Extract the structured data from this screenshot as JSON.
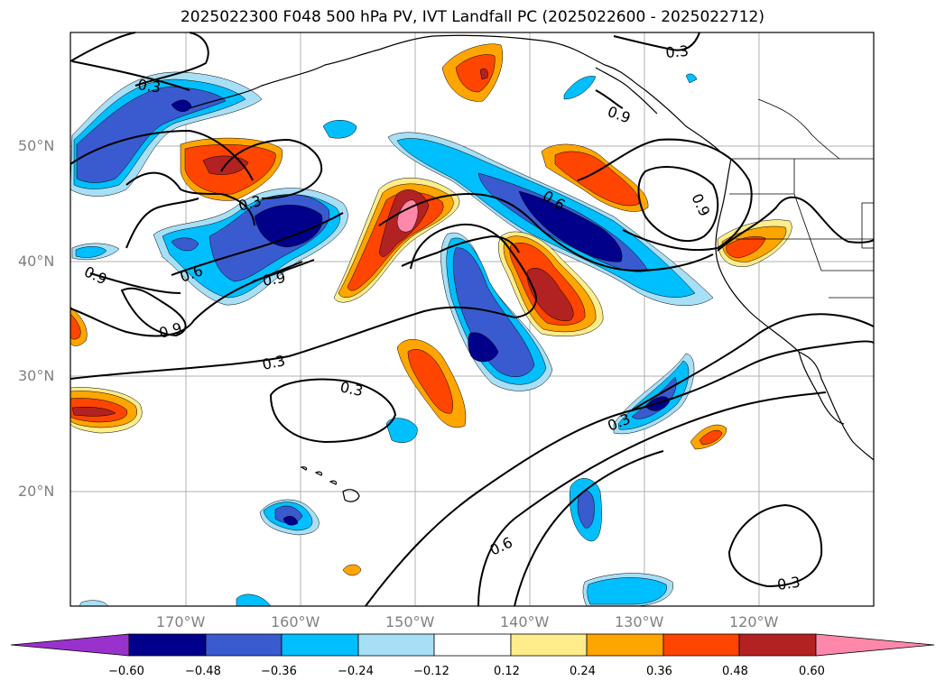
{
  "title": "2025022300 F048 500 hPa PV, IVT Landfall PC (2025022600 - 2025022712)",
  "lat_labels": [
    "50°N",
    "40°N",
    "30°N",
    "20°N"
  ],
  "lon_labels": [
    "170°W",
    "160°W",
    "150°W",
    "140°W",
    "130°W",
    "120°W"
  ],
  "contour_labels": [
    "0.3",
    "0.3",
    "0.3",
    "0.9",
    "0.6",
    "0.9",
    "0.9",
    "0.6",
    "0.9",
    "0.9",
    "0.3",
    "0.3",
    "0.3",
    "0.6",
    "0.3"
  ],
  "colorbar": {
    "ticks": [
      "−0.60",
      "−0.48",
      "−0.36",
      "−0.24",
      "−0.12",
      "0.12",
      "0.24",
      "0.36",
      "0.48",
      "0.60"
    ],
    "colors": {
      "under": "#9932cc",
      "b_060_048": "#00008b",
      "b_048_036": "#3a5bcf",
      "b_036_024": "#00bfff",
      "b_024_012": "#a7dff7",
      "b_012_012": "#ffffff",
      "b_012_024": "#ffec8b",
      "b_024_036": "#ffa500",
      "b_036_048": "#ff4500",
      "b_048_060": "#b22222",
      "over": "#ff88aa"
    }
  }
}
